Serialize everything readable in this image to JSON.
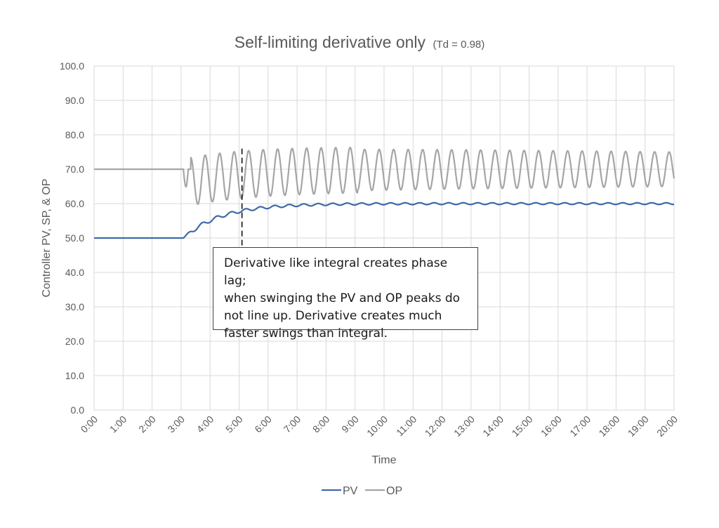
{
  "chart_data": {
    "type": "line",
    "title": "Self-limiting derivative only",
    "subtitle": "(Td = 0.98)",
    "xlabel": "Time",
    "ylabel": "Controller PV, SP, & OP",
    "ylim": [
      0,
      100
    ],
    "y_ticks": [
      "0.0",
      "10.0",
      "20.0",
      "30.0",
      "40.0",
      "50.0",
      "60.0",
      "70.0",
      "80.0",
      "90.0",
      "100.0"
    ],
    "x_range_minutes": [
      0,
      20
    ],
    "x_ticks": [
      "0:00",
      "1:00",
      "2:00",
      "3:00",
      "4:00",
      "5:00",
      "6:00",
      "7:00",
      "8:00",
      "9:00",
      "10:00",
      "11:00",
      "12:00",
      "13:00",
      "14:00",
      "15:00",
      "16:00",
      "17:00",
      "18:00",
      "19:00",
      "20:00"
    ],
    "grid": true,
    "legend_position": "bottom",
    "series": [
      {
        "name": "PV",
        "color": "#3f6aa8",
        "description": "Flat at 50 until ~3:05, then rises in a wavy staircase, ~57 at 5:00, ~59.5 at 7:00, settles near 60 with small ripple (~±0.5) of period ~0.5 min",
        "initial": 50,
        "step_time_min": 3.08,
        "final": 60,
        "rise_tau_min": 1.3,
        "ripple_amp_start": 1.2,
        "ripple_amp_end": 0.5,
        "period_min": 0.5,
        "x": [
          0,
          3.0,
          3.5,
          4.0,
          4.5,
          5.0,
          5.5,
          6.0,
          7.0,
          8.0,
          10.0,
          12.0,
          14.0,
          16.0,
          18.0,
          20.0
        ],
        "values": [
          50.0,
          50.0,
          52.5,
          54.5,
          55.8,
          57.2,
          57.8,
          58.5,
          59.3,
          59.7,
          60.0,
          60.0,
          60.0,
          60.0,
          60.0,
          60.2
        ]
      },
      {
        "name": "OP",
        "color": "#a5a5a5",
        "description": "Flat at 70 until ~3:05, dips to ~58, then sustained oscillation with period ~0.5 min; range ~62-75 early, ~64-76 mid, ~65-75 late",
        "initial": 70,
        "step_time_min": 3.08,
        "first_trough": 57.8,
        "period_min": 0.5,
        "center_start": 66,
        "center_end": 70,
        "amp_start": 7,
        "amp_mid": 6,
        "amp_end": 5,
        "peaks_approx": [
          72.5,
          73.5,
          74.2,
          75.0,
          75.2,
          75.5,
          75.7,
          75.8,
          75.8,
          75.6,
          75.5,
          75.3,
          75.1,
          75.0,
          74.8,
          74.6,
          74.5
        ],
        "troughs_approx": [
          57.8,
          59.5,
          61.0,
          62.0,
          62.8,
          63.5,
          64.0,
          64.4,
          64.7,
          64.9,
          65.0,
          65.1,
          65.2,
          65.3,
          65.4
        ],
        "final_value": 73.0
      }
    ],
    "annotations": [
      {
        "type": "vertical-dashed-line",
        "x_min": 5.1,
        "y_from": 76,
        "y_to": 47.5
      },
      {
        "type": "text-box",
        "text": "Derivative like integral creates phase lag; when swinging the PV and OP peaks do not line up.  Derivative creates much faster swings than integral.",
        "lines": [
          "Derivative like integral creates phase lag;",
          "when swinging the PV and OP peaks do",
          "not line up.  Derivative creates much",
          "faster swings than integral."
        ]
      }
    ]
  },
  "legend": {
    "items": [
      {
        "label": "PV",
        "color": "#3f6aa8"
      },
      {
        "label": "OP",
        "color": "#a5a5a5"
      }
    ]
  },
  "colors": {
    "gridline": "#d9d9d9",
    "text": "#595959",
    "annotation_line": "#000000"
  }
}
